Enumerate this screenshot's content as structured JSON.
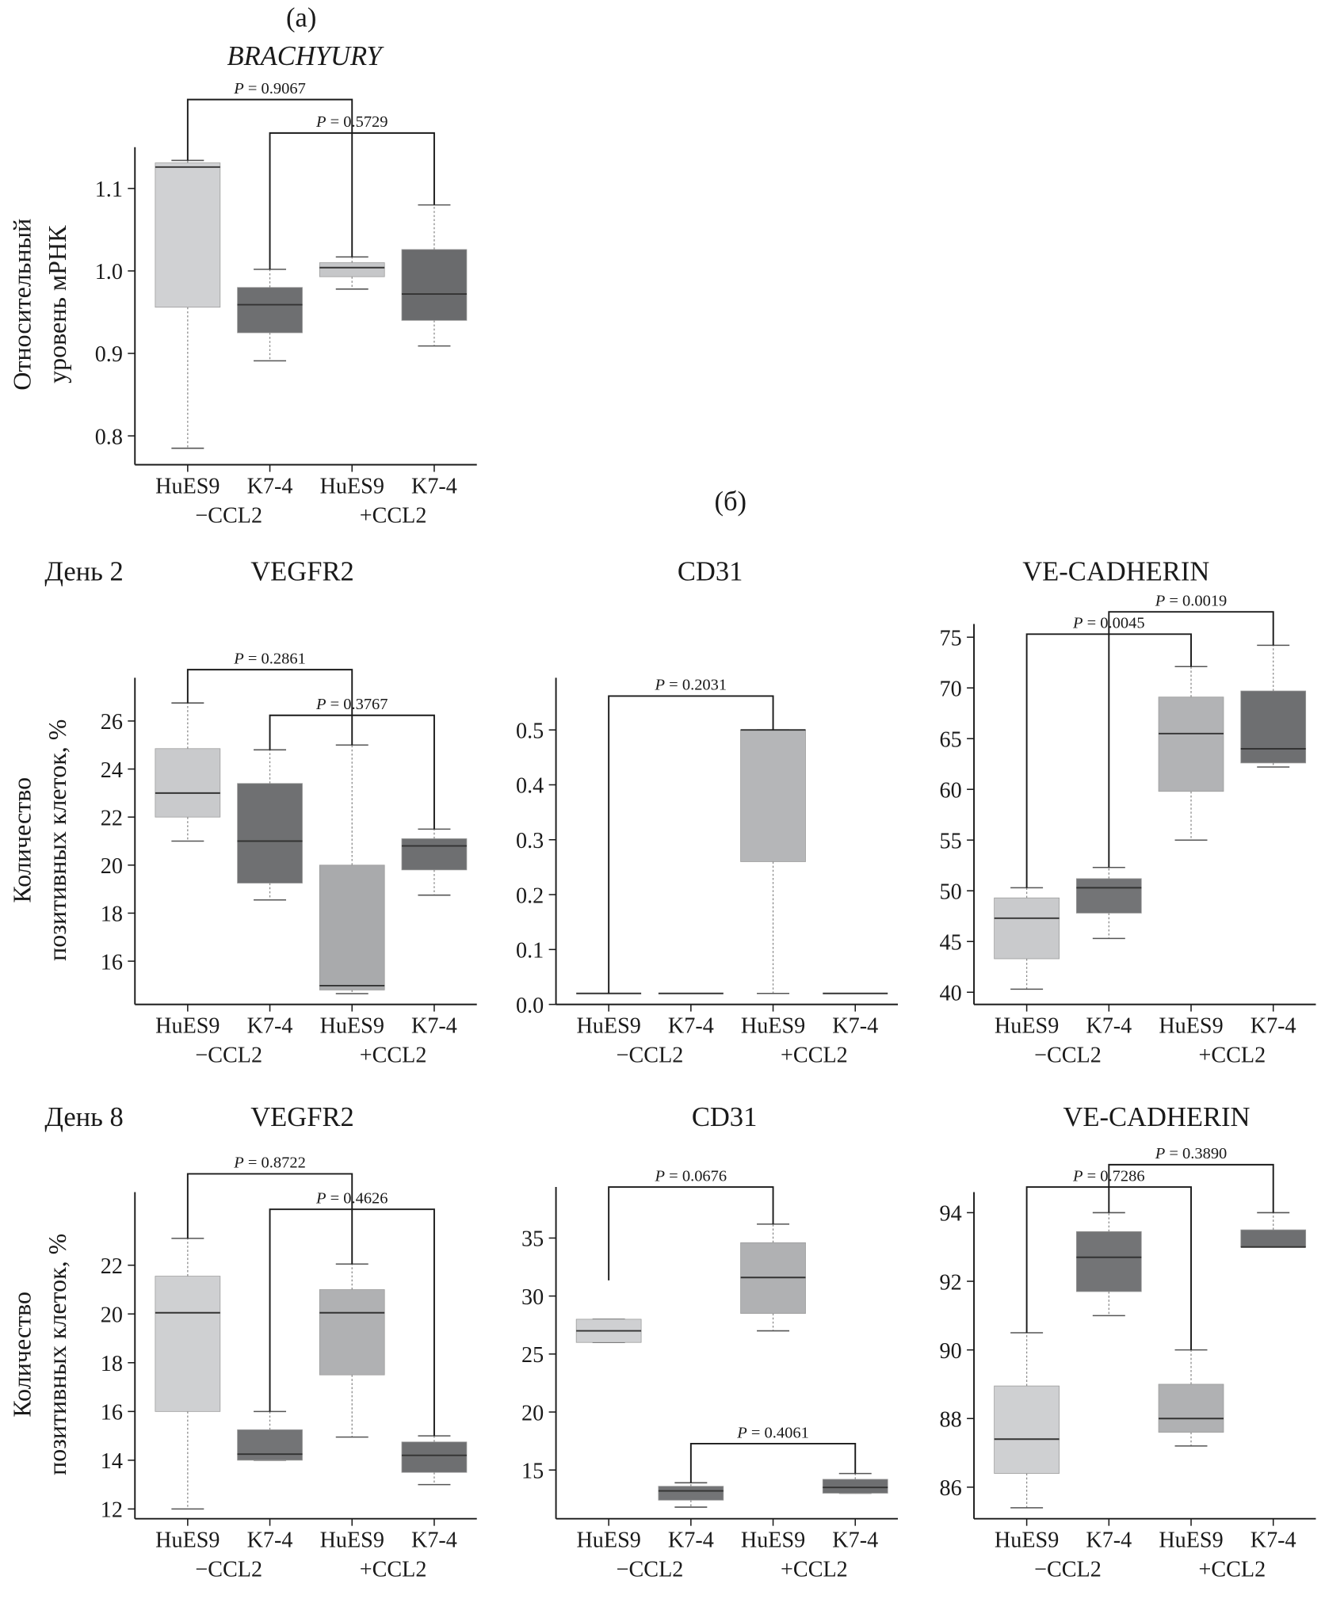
{
  "labels": {
    "a": "(a)",
    "b": "(б)",
    "day2": "День 2",
    "day8": "День 8"
  },
  "chart_data": [
    {
      "type": "box",
      "title": "BRACHYURY",
      "y_label": [
        "Относительный",
        "уровень мРНК"
      ],
      "categories": [
        "HuES9",
        "K7-4",
        "HuES9",
        "K7-4"
      ],
      "groups": [
        "−CCL2",
        "+CCL2"
      ],
      "colors": [
        "#d0d1d3",
        "#6e6f71",
        "#c6c7c9",
        "#6a6b6d"
      ],
      "boxes": [
        {
          "min": 0.785,
          "q1": 0.956,
          "median": 1.126,
          "q3": 1.131,
          "max": 1.134
        },
        {
          "min": 0.891,
          "q1": 0.925,
          "median": 0.959,
          "q3": 0.98,
          "max": 1.002
        },
        {
          "min": 0.978,
          "q1": 0.993,
          "median": 1.004,
          "q3": 1.01,
          "max": 1.017
        },
        {
          "min": 0.909,
          "q1": 0.94,
          "median": 0.972,
          "q3": 1.026,
          "max": 1.08
        }
      ],
      "ylim": [
        0.765,
        1.15
      ],
      "yticks": [
        0.8,
        0.9,
        {
          "value": 1,
          "label": "1.0"
        },
        1.1
      ],
      "annotations": [
        {
          "text": "P = 0.9067"
        },
        {
          "text": "P = 0.5729"
        }
      ]
    },
    {
      "type": "box",
      "title": "VEGFR2",
      "y_label": [
        "Количество",
        "позитивных клеток, %"
      ],
      "categories": [
        "HuES9",
        "K7-4",
        "HuES9",
        "K7-4"
      ],
      "groups": [
        "−CCL2",
        "+CCL2"
      ],
      "colors": [
        "#c9cacc",
        "#6f7072",
        "#a9aaac",
        "#6e6f71"
      ],
      "boxes": [
        {
          "min": 21.0,
          "q1": 22.0,
          "median": 23.0,
          "q3": 24.85,
          "max": 26.75
        },
        {
          "min": 18.55,
          "q1": 19.25,
          "median": 21.0,
          "q3": 23.4,
          "max": 24.8
        },
        {
          "min": 14.65,
          "q1": 14.8,
          "median": 14.98,
          "q3": 20.0,
          "max": 25.0
        },
        {
          "min": 18.75,
          "q1": 19.8,
          "median": 20.8,
          "q3": 21.1,
          "max": 21.5
        }
      ],
      "ylim": [
        14.2,
        27.8
      ],
      "yticks": [
        16,
        18,
        20,
        22,
        24,
        26
      ],
      "annotations": [
        {
          "text": "P = 0.2861"
        },
        {
          "text": "P = 0.3767"
        }
      ]
    },
    {
      "type": "box",
      "title": "CD31",
      "categories": [
        "HuES9",
        "K7-4",
        "HuES9",
        "K7-4"
      ],
      "groups": [
        "−CCL2",
        "+CCL2"
      ],
      "colors": [
        "#c9cacc",
        "#6f7072",
        "#b5b6b8",
        "#6e6f71"
      ],
      "boxes": [
        {
          "min": 0.02,
          "q1": 0.02,
          "median": 0.02,
          "q3": 0.02,
          "max": 0.02
        },
        {
          "min": 0.02,
          "q1": 0.02,
          "median": 0.02,
          "q3": 0.02,
          "max": 0.02
        },
        {
          "min": 0.02,
          "q1": 0.26,
          "median": 0.5,
          "q3": 0.5,
          "max": 0.5
        },
        {
          "min": 0.02,
          "q1": 0.02,
          "median": 0.02,
          "q3": 0.02,
          "max": 0.02
        }
      ],
      "ylim": [
        0,
        0.595
      ],
      "yticks": [
        {
          "value": 0,
          "label": "0.0"
        },
        0.1,
        0.2,
        0.3,
        0.4,
        0.5
      ],
      "annotations": [
        {
          "text": "P = 0.2031"
        }
      ]
    },
    {
      "type": "box",
      "title": "VE-CADHERIN",
      "categories": [
        "HuES9",
        "K7-4",
        "HuES9",
        "K7-4"
      ],
      "groups": [
        "−CCL2",
        "+CCL2"
      ],
      "colors": [
        "#c9cacc",
        "#737476",
        "#b2b3b5",
        "#6e6f71"
      ],
      "boxes": [
        {
          "min": 40.3,
          "q1": 43.3,
          "median": 47.3,
          "q3": 49.3,
          "max": 50.3
        },
        {
          "min": 45.3,
          "q1": 47.8,
          "median": 50.3,
          "q3": 51.2,
          "max": 52.3
        },
        {
          "min": 55.0,
          "q1": 59.8,
          "median": 65.5,
          "q3": 69.1,
          "max": 72.1
        },
        {
          "min": 62.2,
          "q1": 62.6,
          "median": 64.0,
          "q3": 69.7,
          "max": 74.2
        }
      ],
      "ylim": [
        38.8,
        76.3
      ],
      "yticks": [
        40,
        45,
        50,
        55,
        60,
        65,
        70,
        75
      ],
      "annotations": [
        {
          "text": "P = 0.0045"
        },
        {
          "text": "P = 0.0019"
        }
      ]
    },
    {
      "type": "box",
      "title": "VEGFR2",
      "y_label": [
        "Количество",
        "позитивных клеток, %"
      ],
      "categories": [
        "HuES9",
        "K7-4",
        "HuES9",
        "K7-4"
      ],
      "groups": [
        "−CCL2",
        "+CCL2"
      ],
      "colors": [
        "#cfd0d2",
        "#737476",
        "#b0b1b3",
        "#6e6f71"
      ],
      "boxes": [
        {
          "min": 12.0,
          "q1": 16.0,
          "median": 20.05,
          "q3": 21.55,
          "max": 23.1
        },
        {
          "min": 14.0,
          "q1": 14.0,
          "median": 14.25,
          "q3": 15.25,
          "max": 16.0
        },
        {
          "min": 14.95,
          "q1": 17.5,
          "median": 20.05,
          "q3": 21.0,
          "max": 22.05
        },
        {
          "min": 13.0,
          "q1": 13.5,
          "median": 14.2,
          "q3": 14.75,
          "max": 15.0
        }
      ],
      "ylim": [
        11.6,
        25.0
      ],
      "yticks": [
        12,
        14,
        16,
        18,
        20,
        22
      ],
      "annotations": [
        {
          "text": "P = 0.8722"
        },
        {
          "text": "P = 0.4626"
        }
      ]
    },
    {
      "type": "box",
      "title": "CD31",
      "categories": [
        "HuES9",
        "K7-4",
        "HuES9",
        "K7-4"
      ],
      "groups": [
        "−CCL2",
        "+CCL2"
      ],
      "colors": [
        "#cfd0d2",
        "#737476",
        "#b0b1b3",
        "#6e6f71"
      ],
      "boxes": [
        {
          "min": 26.0,
          "q1": 26.0,
          "median": 27.0,
          "q3": 28.0,
          "max": 28.0
        },
        {
          "min": 11.8,
          "q1": 12.4,
          "median": 13.2,
          "q3": 13.6,
          "max": 13.9
        },
        {
          "min": 27.0,
          "q1": 28.5,
          "median": 31.6,
          "q3": 34.6,
          "max": 36.2
        },
        {
          "min": 13.0,
          "q1": 13.0,
          "median": 13.5,
          "q3": 14.2,
          "max": 14.7
        }
      ],
      "ylim": [
        10.8,
        39.4
      ],
      "yticks": [
        15,
        20,
        25,
        30,
        35
      ],
      "annotations": [
        {
          "text": "P = 0.0676"
        },
        {
          "text": "P = 0.4061"
        }
      ]
    },
    {
      "type": "box",
      "title": "VE-CADHERIN",
      "categories": [
        "HuES9",
        "K7-4",
        "HuES9",
        "K7-4"
      ],
      "groups": [
        "−CCL2",
        "+CCL2"
      ],
      "colors": [
        "#cfd0d2",
        "#737476",
        "#b0b1b3",
        "#6e6f71"
      ],
      "boxes": [
        {
          "min": 85.4,
          "q1": 86.4,
          "median": 87.4,
          "q3": 88.95,
          "max": 90.5
        },
        {
          "min": 91.0,
          "q1": 91.7,
          "median": 92.7,
          "q3": 93.45,
          "max": 94.0
        },
        {
          "min": 87.2,
          "q1": 87.6,
          "median": 88.0,
          "q3": 89.0,
          "max": 90.0
        },
        {
          "min": 93.0,
          "q1": 93.0,
          "median": 93.0,
          "q3": 93.5,
          "max": 94.0
        }
      ],
      "ylim": [
        85.08,
        94.6
      ],
      "yticks": [
        86,
        88,
        90,
        92,
        94
      ],
      "annotations": [
        {
          "text": "P = 0.7286"
        },
        {
          "text": "P = 0.3890"
        }
      ]
    }
  ]
}
